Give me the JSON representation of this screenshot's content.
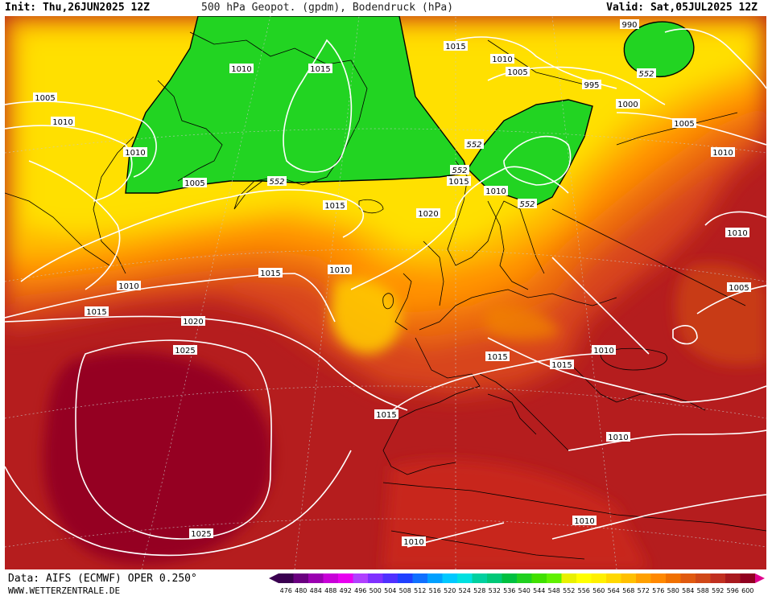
{
  "header": {
    "init": "Init: Thu,26JUN2025 12Z",
    "title": "500 hPa Geopot. (gpdm), Bodendruck (hPa)",
    "valid": "Valid: Sat,05JUL2025 12Z"
  },
  "footer": {
    "source": "Data: AIFS (ECMWF) OPER 0.250°",
    "site": "WWW.WETTERZENTRALE.DE"
  },
  "legend": {
    "values": [
      "476",
      "480",
      "484",
      "488",
      "492",
      "496",
      "500",
      "504",
      "508",
      "512",
      "516",
      "520",
      "524",
      "528",
      "532",
      "536",
      "540",
      "544",
      "548",
      "552",
      "556",
      "560",
      "564",
      "568",
      "572",
      "576",
      "580",
      "584",
      "588",
      "592",
      "596",
      "600"
    ],
    "colors": [
      "#3a0050",
      "#6a0080",
      "#9a00b0",
      "#c800d8",
      "#e800f0",
      "#b040ff",
      "#8030ff",
      "#5030ff",
      "#2040ff",
      "#1070ff",
      "#00a0ff",
      "#00c8ff",
      "#00e0e0",
      "#00d0a0",
      "#00c878",
      "#00c040",
      "#20d020",
      "#40e000",
      "#60f000",
      "#e8f000",
      "#ffff00",
      "#fff000",
      "#ffd800",
      "#ffc000",
      "#ffa000",
      "#ff8800",
      "#f07000",
      "#e05a10",
      "#d04818",
      "#c03020",
      "#a81a1e",
      "#900020"
    ],
    "end_color": "#e0008c"
  },
  "isobars": [
    {
      "value": "1005",
      "region": "labrador"
    },
    {
      "value": "1010",
      "region": "labrador"
    },
    {
      "value": "1010",
      "region": "greenland-north"
    },
    {
      "value": "1015",
      "region": "greenland"
    },
    {
      "value": "1015",
      "region": "svalbard"
    },
    {
      "value": "1010",
      "region": "barents"
    },
    {
      "value": "1005",
      "region": "barents"
    },
    {
      "value": "990",
      "region": "kara"
    },
    {
      "value": "995",
      "region": "scandinavia-north"
    },
    {
      "value": "1000",
      "region": "scandinavia-north"
    },
    {
      "value": "1005",
      "region": "russia-north"
    },
    {
      "value": "1010",
      "region": "russia"
    },
    {
      "value": "1010",
      "region": "urals"
    },
    {
      "value": "1005",
      "region": "urals-south"
    },
    {
      "value": "1010",
      "region": "greenland-west"
    },
    {
      "value": "1005",
      "region": "greenland-south"
    },
    {
      "value": "1015",
      "region": "iceland"
    },
    {
      "value": "1020",
      "region": "north-sea"
    },
    {
      "value": "1015",
      "region": "norway"
    },
    {
      "value": "1010",
      "region": "finland"
    },
    {
      "value": "1010",
      "region": "atlantic-north"
    },
    {
      "value": "1015",
      "region": "atlantic-north"
    },
    {
      "value": "1010",
      "region": "ireland"
    },
    {
      "value": "1015",
      "region": "atlantic"
    },
    {
      "value": "1020",
      "region": "atlantic"
    },
    {
      "value": "1025",
      "region": "azores"
    },
    {
      "value": "1025",
      "region": "azores-south"
    },
    {
      "value": "1015",
      "region": "iberia"
    },
    {
      "value": "1015",
      "region": "alps"
    },
    {
      "value": "1015",
      "region": "balkans"
    },
    {
      "value": "1010",
      "region": "black-sea"
    },
    {
      "value": "1010",
      "region": "mediterranean-east"
    },
    {
      "value": "1010",
      "region": "africa-east"
    },
    {
      "value": "1010",
      "region": "africa-west"
    }
  ],
  "geopotential_labels": [
    {
      "value": "552",
      "region": "greenland"
    },
    {
      "value": "552",
      "region": "norway"
    },
    {
      "value": "552",
      "region": "norway-sea"
    },
    {
      "value": "552",
      "region": "finland"
    },
    {
      "value": "552",
      "region": "kara"
    }
  ]
}
